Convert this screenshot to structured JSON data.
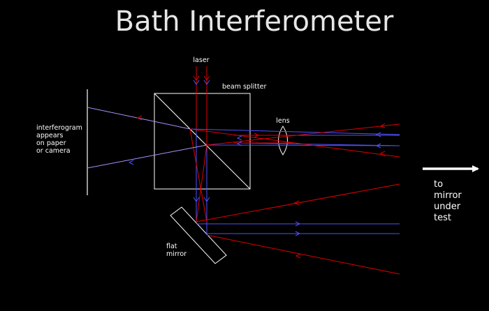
{
  "title": "Bath Interferometer",
  "labels": {
    "laser": "laser",
    "beam_splitter": "beam splitter",
    "lens": "lens",
    "interferogram": [
      "interferogram",
      "appears",
      "on paper",
      "or camera"
    ],
    "flat_mirror": [
      "flat",
      "mirror"
    ],
    "to_mirror": [
      "to",
      "mirror",
      "under",
      "test"
    ]
  },
  "colors": {
    "background": "#000000",
    "red_beam": "#e00000",
    "blue_beam": "#5050ff",
    "purple_beam": "#b090ff",
    "outline": "#ffffff"
  }
}
